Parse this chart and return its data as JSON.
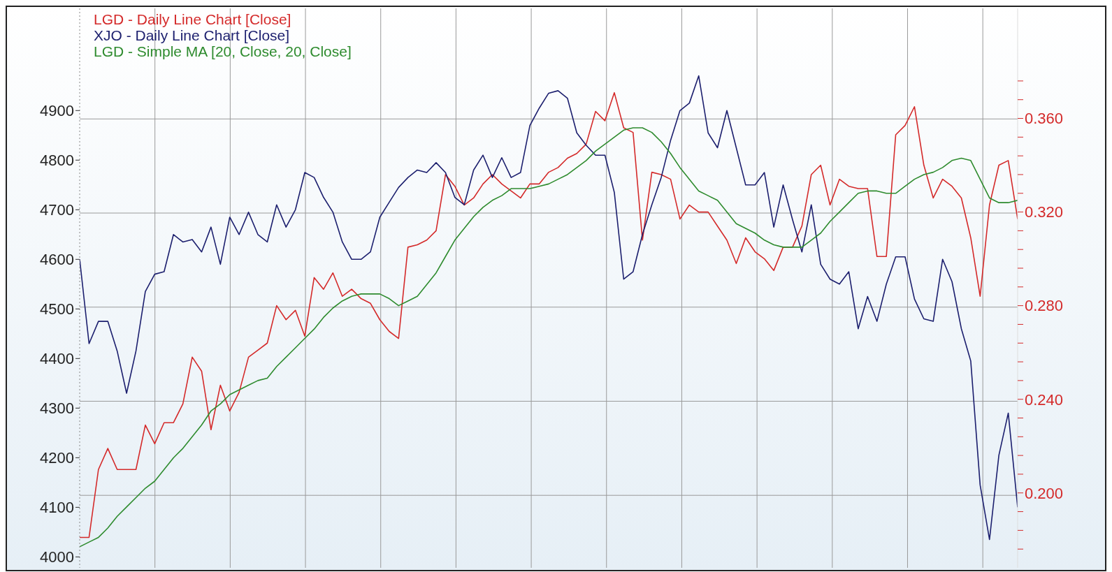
{
  "chart_data": {
    "type": "line",
    "categories": [
      null,
      null,
      null,
      null,
      null,
      null,
      null,
      null,
      null,
      null,
      null,
      null,
      null,
      null,
      null,
      null,
      null,
      null,
      null,
      null,
      null,
      null,
      null,
      null,
      null,
      null,
      null,
      null,
      null,
      null,
      null,
      null,
      null,
      null,
      null,
      null,
      null,
      null,
      null,
      null,
      null,
      null,
      null,
      null,
      null,
      null,
      null,
      null,
      null,
      null,
      null,
      null,
      null,
      null,
      null,
      null,
      null,
      null,
      null,
      null,
      null,
      null,
      null,
      null,
      null,
      null,
      null,
      null,
      null,
      null,
      null,
      null,
      null,
      null,
      null,
      null,
      null,
      null,
      null,
      null,
      null,
      null,
      null,
      null,
      null,
      null,
      null,
      null,
      null,
      null,
      null,
      null,
      null,
      null,
      null,
      null,
      null,
      null,
      null,
      null,
      null
    ],
    "series": [
      {
        "name": "LGD - Daily Line Chart [Close]",
        "color": "#d42a2a",
        "axis": "y2",
        "values": [
          0.181,
          0.181,
          0.21,
          0.219,
          0.21,
          0.21,
          0.21,
          0.229,
          0.221,
          0.23,
          0.23,
          0.238,
          0.258,
          0.252,
          0.227,
          0.246,
          0.235,
          0.243,
          0.258,
          0.261,
          0.264,
          0.28,
          0.274,
          0.278,
          0.267,
          0.292,
          0.287,
          0.294,
          0.284,
          0.287,
          0.283,
          0.281,
          0.274,
          0.269,
          0.266,
          0.305,
          0.306,
          0.308,
          0.312,
          0.336,
          0.331,
          0.323,
          0.326,
          0.332,
          0.336,
          0.332,
          0.329,
          0.326,
          0.332,
          0.332,
          0.337,
          0.339,
          0.343,
          0.345,
          0.349,
          0.363,
          0.359,
          0.371,
          0.356,
          0.354,
          0.308,
          0.337,
          0.336,
          0.334,
          0.317,
          0.323,
          0.32,
          0.32,
          0.314,
          0.308,
          0.298,
          0.309,
          0.303,
          0.3,
          0.295,
          0.305,
          0.305,
          0.314,
          0.336,
          0.34,
          0.323,
          0.334,
          0.331,
          0.33,
          0.33,
          0.301,
          0.301,
          0.353,
          0.357,
          0.365,
          0.34,
          0.326,
          0.334,
          0.331,
          0.326,
          0.309,
          0.284,
          0.323,
          0.34,
          0.342,
          0.317
        ]
      },
      {
        "name": "XJO - Daily Line Chart [Close]",
        "color": "#1c1f6e",
        "values": [
          4600,
          4430,
          4475,
          4475,
          4415,
          4330,
          4415,
          4535,
          4570,
          4575,
          4650,
          4635,
          4640,
          4615,
          4665,
          4590,
          4685,
          4650,
          4695,
          4650,
          4635,
          4710,
          4665,
          4700,
          4775,
          4765,
          4725,
          4695,
          4635,
          4600,
          4600,
          4615,
          4685,
          4715,
          4745,
          4765,
          4780,
          4775,
          4795,
          4775,
          4725,
          4710,
          4780,
          4810,
          4765,
          4805,
          4765,
          4775,
          4870,
          4905,
          4935,
          4940,
          4925,
          4855,
          4830,
          4810,
          4810,
          4735,
          4560,
          4575,
          4650,
          4710,
          4765,
          4840,
          4900,
          4915,
          4970,
          4855,
          4825,
          4900,
          4825,
          4750,
          4750,
          4775,
          4665,
          4750,
          4680,
          4615,
          4710,
          4590,
          4560,
          4550,
          4575,
          4460,
          4525,
          4475,
          4550,
          4605,
          4605,
          4520,
          4480,
          4475,
          4600,
          4555,
          4460,
          4395,
          4145,
          4035,
          4205,
          4290,
          4100
        ]
      },
      {
        "name": "LGD - Simple MA [20, Close, 20, Close]",
        "color": "#2e8b2e",
        "axis": "y2",
        "values": [
          0.177,
          0.179,
          0.181,
          0.185,
          0.19,
          0.194,
          0.198,
          0.202,
          0.205,
          0.21,
          0.215,
          0.219,
          0.224,
          0.229,
          0.235,
          0.238,
          0.242,
          0.244,
          0.246,
          0.248,
          0.249,
          0.254,
          0.258,
          0.262,
          0.266,
          0.27,
          0.275,
          0.279,
          0.282,
          0.284,
          0.285,
          0.285,
          0.285,
          0.283,
          0.28,
          0.282,
          0.284,
          0.289,
          0.294,
          0.301,
          0.308,
          0.313,
          0.318,
          0.322,
          0.325,
          0.327,
          0.33,
          0.33,
          0.33,
          0.331,
          0.332,
          0.334,
          0.336,
          0.339,
          0.342,
          0.346,
          0.349,
          0.352,
          0.355,
          0.356,
          0.356,
          0.354,
          0.35,
          0.345,
          0.339,
          0.334,
          0.329,
          0.327,
          0.325,
          0.32,
          0.315,
          0.313,
          0.311,
          0.308,
          0.306,
          0.305,
          0.305,
          0.305,
          0.308,
          0.311,
          0.316,
          0.32,
          0.324,
          0.328,
          0.329,
          0.329,
          0.328,
          0.328,
          0.331,
          0.334,
          0.336,
          0.337,
          0.339,
          0.342,
          0.343,
          0.342,
          0.334,
          0.326,
          0.324,
          0.324,
          0.325
        ]
      }
    ],
    "ylim": [
      3978,
      5106
    ],
    "yticks": [
      4000,
      4100,
      4200,
      4300,
      4400,
      4500,
      4600,
      4700,
      4800,
      4900
    ],
    "y2lim": [
      0.168,
      0.407
    ],
    "y2ticks": [
      {
        "value": 0.176,
        "label": null
      },
      {
        "value": 0.184,
        "label": null
      },
      {
        "value": 0.192,
        "label": null
      },
      {
        "value": 0.2,
        "label": "0.200"
      },
      {
        "value": 0.208,
        "label": null
      },
      {
        "value": 0.216,
        "label": null
      },
      {
        "value": 0.224,
        "label": null
      },
      {
        "value": 0.232,
        "label": null
      },
      {
        "value": 0.24,
        "label": "0.240"
      },
      {
        "value": 0.248,
        "label": null
      },
      {
        "value": 0.256,
        "label": null
      },
      {
        "value": 0.264,
        "label": null
      },
      {
        "value": 0.272,
        "label": null
      },
      {
        "value": 0.28,
        "label": "0.280"
      },
      {
        "value": 0.288,
        "label": null
      },
      {
        "value": 0.296,
        "label": null
      },
      {
        "value": 0.304,
        "label": null
      },
      {
        "value": 0.312,
        "label": null
      },
      {
        "value": 0.32,
        "label": "0.320"
      },
      {
        "value": 0.328,
        "label": null
      },
      {
        "value": 0.336,
        "label": null
      },
      {
        "value": 0.344,
        "label": null
      },
      {
        "value": 0.352,
        "label": null
      },
      {
        "value": 0.36,
        "label": "0.360"
      },
      {
        "value": 0.368,
        "label": null
      },
      {
        "value": 0.376,
        "label": null
      }
    ],
    "grid": true,
    "legend": "top left",
    "marker": "none",
    "line_style": "solid",
    "tick_labels": "y"
  }
}
